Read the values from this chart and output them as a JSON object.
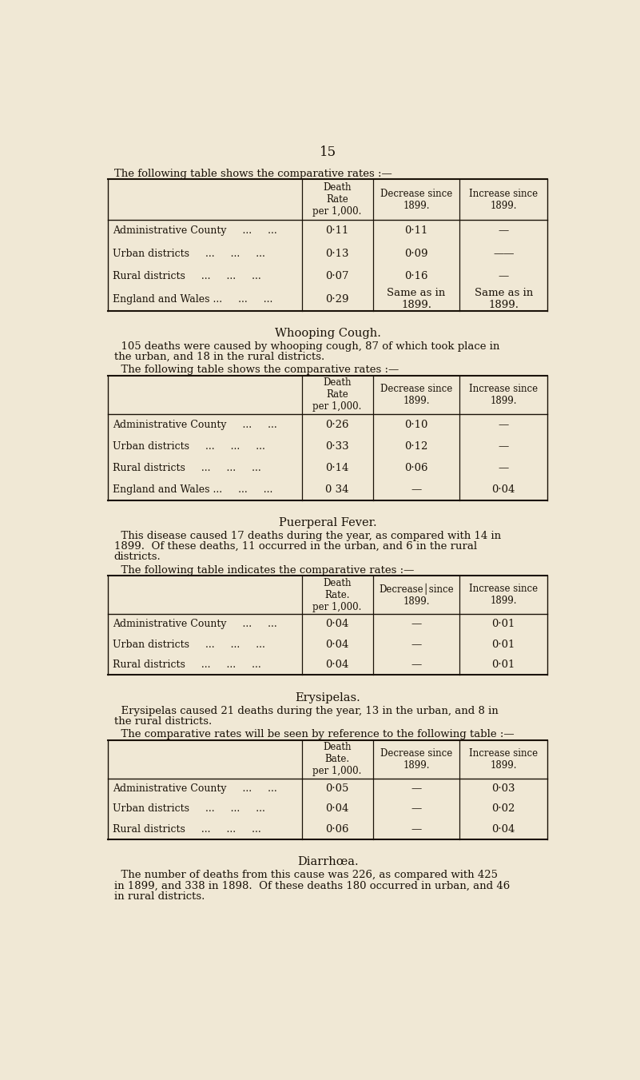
{
  "bg_color": "#f0e8d5",
  "text_color": "#1a1208",
  "page_number": "15",
  "sections": [
    {
      "intro_text": "The following table shows the comparative rates :—",
      "table": {
        "header_col1": "",
        "header_col2": "Death\nRate\nper 1,000.",
        "header_col3": "Decrease since\n1899.",
        "header_col4": "Increase since\n1899.",
        "rows": [
          [
            "Administrative County",
            "...",
            "...",
            "0·11",
            "0·11",
            "—"
          ],
          [
            "Urban districts",
            "...",
            "...",
            "...",
            "0·13",
            "0·09",
            "——"
          ],
          [
            "Rural districts",
            "...",
            "...",
            "...",
            "0·07",
            "0·16",
            "—"
          ],
          [
            "England and Wales ...",
            "...",
            "...",
            "0·29",
            "Same as in\n1899.",
            "Same as in\n1899."
          ]
        ],
        "row_labels": [
          "Administrative County     ...     ...",
          "Urban districts     ...     ...     ...",
          "Rural districts     ...     ...     ...",
          "England and Wales ...     ...     ..."
        ],
        "col2": [
          "0·11",
          "0·13",
          "0·07",
          "0·29"
        ],
        "col3": [
          "0·11",
          "0·09",
          "0·16",
          "Same as in\n1899."
        ],
        "col4": [
          "—",
          "——",
          "—",
          "Same as in\n1899."
        ]
      }
    },
    {
      "section_title": "Whooping Cough.",
      "body_text_lines": [
        "  105 deaths were caused by whooping cough, 87 of which took place in",
        "the urban, and 18 in the rural districts."
      ],
      "intro_text": "  The following table shows the comparative rates :—",
      "table": {
        "row_labels": [
          "Administrative County     ...     ...",
          "Urban districts     ...     ...     ...",
          "Rural districts     ...     ...     ...",
          "England and Wales ...     ...     ..."
        ],
        "col2": [
          "0·26",
          "0·33",
          "0·14",
          "0 34"
        ],
        "col3": [
          "0·10",
          "0·12",
          "0·06",
          "—"
        ],
        "col4": [
          "—",
          "—",
          "—",
          "0·04"
        ],
        "header_col2": "Death\nRate\nper 1,000.",
        "header_col3": "Decrease since\n1899.",
        "header_col4": "Increase since\n1899."
      }
    },
    {
      "section_title": "Puerperal Fever.",
      "body_text_lines": [
        "  This disease caused 17 deaths during the year, as compared with 14 in",
        "1899.  Of these deaths, 11 occurred in the urban, and 6 in the rural",
        "districts."
      ],
      "intro_text": "  The following table indicates the comparative rates :—",
      "table": {
        "row_labels": [
          "Administrative County     ...     ...",
          "Urban districts     ...     ...     ...",
          "Rural districts     ...     ...     ..."
        ],
        "col2": [
          "0·04",
          "0·04",
          "0·04"
        ],
        "col3": [
          "—",
          "—",
          "—"
        ],
        "col4": [
          "0·01",
          "0·01",
          "0·01"
        ],
        "header_col2": "Death\nRate.\nper 1,000.",
        "header_col3": "Decrease│since\n1899.",
        "header_col4": "Increase since\n1899."
      }
    },
    {
      "section_title": "Erysipelas.",
      "body_text_lines": [
        "  Erysipelas caused 21 deaths during the year, 13 in the urban, and 8 in",
        "the rural districts."
      ],
      "intro_text": "  The comparative rates will be seen by reference to the following table :—",
      "table": {
        "row_labels": [
          "Administrative County     ...     ...",
          "Urban districts     ...     ...     ...",
          "Rural districts     ...     ...     ..."
        ],
        "col2": [
          "0·05",
          "0·04",
          "0·06"
        ],
        "col3": [
          "—",
          "—",
          "—"
        ],
        "col4": [
          "0·03",
          "0·02",
          "0·04"
        ],
        "header_col2": "Death\nBate.\nper 1,000.",
        "header_col3": "Decrease since\n1899.",
        "header_col4": "Increase since\n1899."
      }
    },
    {
      "section_title": "Diarrhœa.",
      "body_text_lines": [
        "  The number of deaths from this cause was 226, as compared with 425",
        "in 1899, and 338 in 1898.  Of these deaths 180 occurred in urban, and 46",
        "in rural districts."
      ]
    }
  ]
}
